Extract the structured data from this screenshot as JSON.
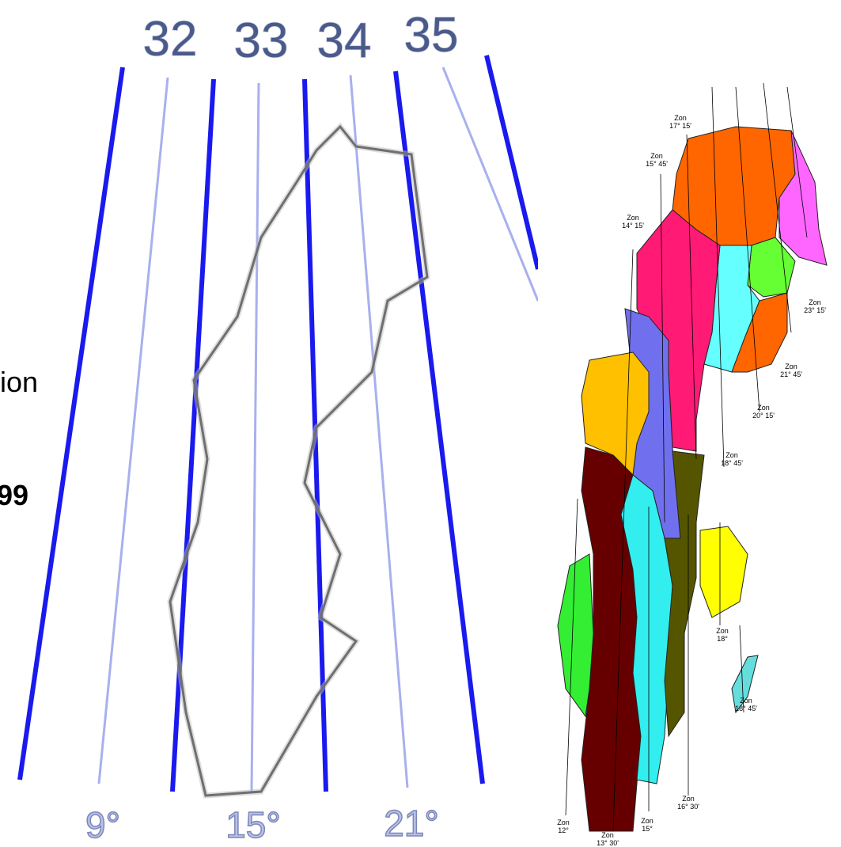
{
  "left_map": {
    "zone_numbers": [
      "32",
      "33",
      "34",
      "35"
    ],
    "longitudes": [
      "9°",
      "15°",
      "21°"
    ],
    "cut_text": [
      "ion",
      "99"
    ]
  },
  "right_map": {
    "zones": [
      {
        "word": "Zon",
        "value": "17° 15'"
      },
      {
        "word": "Zon",
        "value": "15° 45'"
      },
      {
        "word": "Zon",
        "value": "14° 15'"
      },
      {
        "word": "Zon",
        "value": "23° 15'"
      },
      {
        "word": "Zon",
        "value": "21° 45'"
      },
      {
        "word": "Zon",
        "value": "20° 15'"
      },
      {
        "word": "Zon",
        "value": "18° 45'"
      },
      {
        "word": "Zon",
        "value": "18°"
      },
      {
        "word": "Zon",
        "value": "18° 45'"
      },
      {
        "word": "Zon",
        "value": "16° 30'"
      },
      {
        "word": "Zon",
        "value": "12°"
      },
      {
        "word": "Zon",
        "value": "15°"
      },
      {
        "word": "Zon",
        "value": "13° 30'"
      }
    ]
  }
}
